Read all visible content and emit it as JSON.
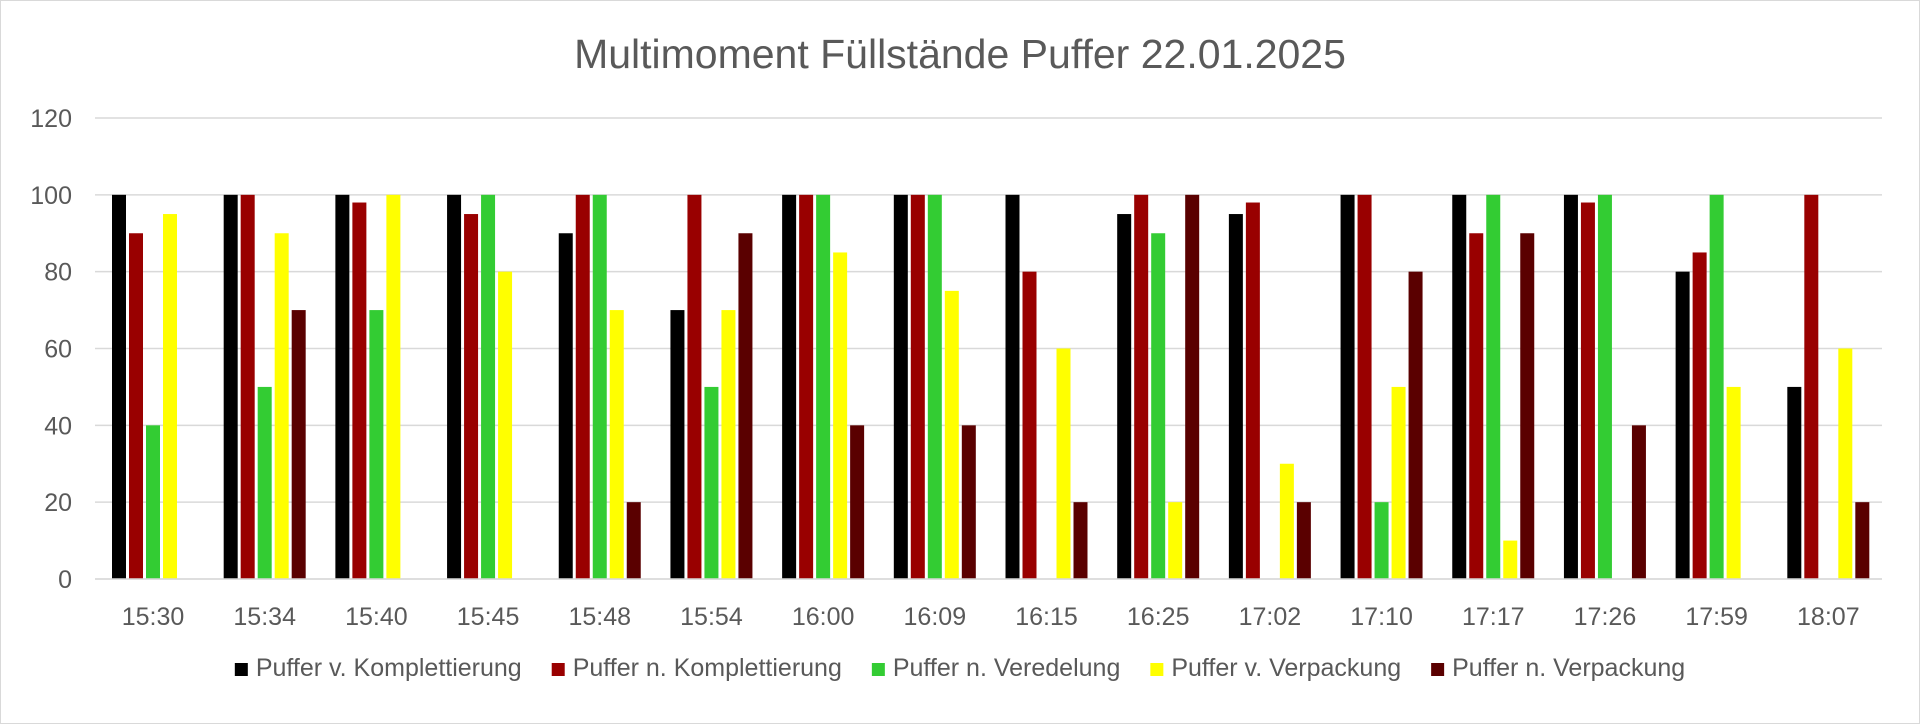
{
  "chart_data": {
    "type": "bar",
    "title": "Multimoment Füllstände Puffer 22.01.2025",
    "xlabel": "",
    "ylabel": "",
    "ylim": [
      0,
      120
    ],
    "yticks": [
      0,
      20,
      40,
      60,
      80,
      100,
      120
    ],
    "grid": true,
    "legend_position": "bottom",
    "categories": [
      "15:30",
      "15:34",
      "15:40",
      "15:45",
      "15:48",
      "15:54",
      "16:00",
      "16:09",
      "16:15",
      "16:25",
      "17:02",
      "17:10",
      "17:17",
      "17:26",
      "17:59",
      "18:07"
    ],
    "series": [
      {
        "name": "Puffer v. Komplettierung",
        "color": "#000000",
        "values": [
          100,
          100,
          100,
          100,
          90,
          70,
          100,
          100,
          100,
          95,
          95,
          100,
          100,
          100,
          80,
          50
        ]
      },
      {
        "name": "Puffer n. Komplettierung",
        "color": "#990000",
        "values": [
          90,
          100,
          98,
          95,
          100,
          100,
          100,
          100,
          80,
          100,
          98,
          100,
          90,
          98,
          85,
          100
        ]
      },
      {
        "name": "Puffer n. Veredelung",
        "color": "#33cc33",
        "values": [
          40,
          50,
          70,
          100,
          100,
          50,
          100,
          100,
          0,
          90,
          0,
          20,
          100,
          100,
          100,
          0
        ]
      },
      {
        "name": "Puffer v. Verpackung",
        "color": "#ffff00",
        "values": [
          95,
          90,
          100,
          80,
          70,
          70,
          85,
          75,
          60,
          20,
          30,
          50,
          10,
          0,
          50,
          60
        ]
      },
      {
        "name": "Puffer n. Verpackung",
        "color": "#5a0000",
        "values": [
          0,
          70,
          0,
          0,
          20,
          90,
          40,
          40,
          20,
          100,
          20,
          80,
          90,
          40,
          0,
          20
        ]
      }
    ]
  }
}
